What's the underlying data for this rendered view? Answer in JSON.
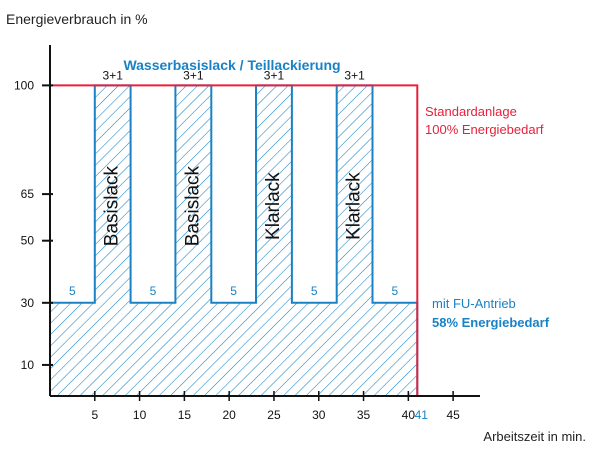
{
  "chart_data": {
    "type": "area",
    "title": "Wasserbasislack / Teillackierung",
    "ylabel": "Energieverbrauch in %",
    "xlabel": "Arbeitszeit in min.",
    "xlim": [
      0,
      48
    ],
    "ylim": [
      0,
      113
    ],
    "x_ticks": [
      5,
      10,
      15,
      20,
      25,
      30,
      35,
      40,
      45
    ],
    "x_ticks_labels": [
      "5",
      "10",
      "15",
      "20",
      "25",
      "30",
      "35",
      "40",
      "45"
    ],
    "y_ticks": [
      10,
      30,
      50,
      65,
      100
    ],
    "y_ticks_labels": [
      "10",
      "30",
      "50",
      "65",
      "100"
    ],
    "x_highlight": {
      "value": 41,
      "label": "41"
    },
    "series": [
      {
        "name": "Standardanlage",
        "color": "#e8203a",
        "x": [
          0,
          41,
          41
        ],
        "y": [
          100,
          100,
          0
        ]
      },
      {
        "name": "mit FU-Antrieb",
        "color": "#1a82c4",
        "x": [
          0,
          5,
          5,
          9,
          9,
          14,
          14,
          18,
          18,
          23,
          23,
          27,
          27,
          32,
          32,
          36,
          36,
          41,
          41
        ],
        "y": [
          30,
          30,
          100,
          100,
          30,
          30,
          100,
          100,
          30,
          30,
          100,
          100,
          30,
          30,
          100,
          100,
          30,
          30,
          0
        ]
      }
    ],
    "segments": [
      {
        "x0": 0,
        "x1": 5,
        "level": 30,
        "label": "5"
      },
      {
        "x0": 5,
        "x1": 9,
        "level": 100,
        "label": "3+1",
        "inner_label": "Basislack"
      },
      {
        "x0": 9,
        "x1": 14,
        "level": 30,
        "label": "5"
      },
      {
        "x0": 14,
        "x1": 18,
        "level": 100,
        "label": "3+1",
        "inner_label": "Basislack"
      },
      {
        "x0": 18,
        "x1": 23,
        "level": 30,
        "label": "5"
      },
      {
        "x0": 23,
        "x1": 27,
        "level": 100,
        "label": "3+1",
        "inner_label": "Klarlack"
      },
      {
        "x0": 27,
        "x1": 32,
        "level": 30,
        "label": "5"
      },
      {
        "x0": 32,
        "x1": 36,
        "level": 100,
        "label": "3+1",
        "inner_label": "Klarlack"
      },
      {
        "x0": 36,
        "x1": 41,
        "level": 30,
        "label": "5"
      }
    ],
    "annotations": {
      "standard_line1": "Standardanlage",
      "standard_line2": "100% Energiebedarf",
      "fu_line1": "mit FU-Antrieb",
      "fu_line2": "58% Energiebedarf"
    },
    "grid": false
  }
}
